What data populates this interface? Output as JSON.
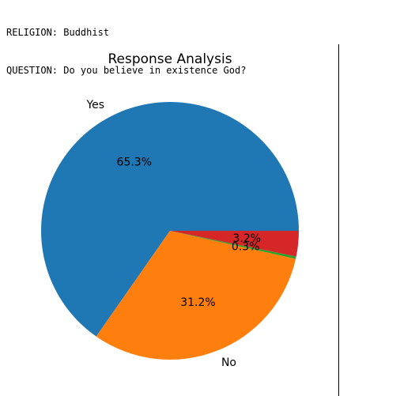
{
  "header": {
    "religion_line": "RELIGION: Buddhist",
    "question_line": "QUESTION: Do you believe in existence God?"
  },
  "chart_data": {
    "type": "pie",
    "title": "Response Analysis",
    "categories": [
      "Yes",
      "No",
      "",
      ""
    ],
    "values": [
      65.3,
      31.2,
      0.3,
      3.2
    ],
    "value_labels": [
      "65.3%",
      "31.2%",
      "0.3%",
      "3.2%"
    ],
    "colors": [
      "#1f77b4",
      "#ff7f0e",
      "#2ca02c",
      "#d62728"
    ],
    "start_angle_deg": 0,
    "direction": "counterclockwise"
  }
}
